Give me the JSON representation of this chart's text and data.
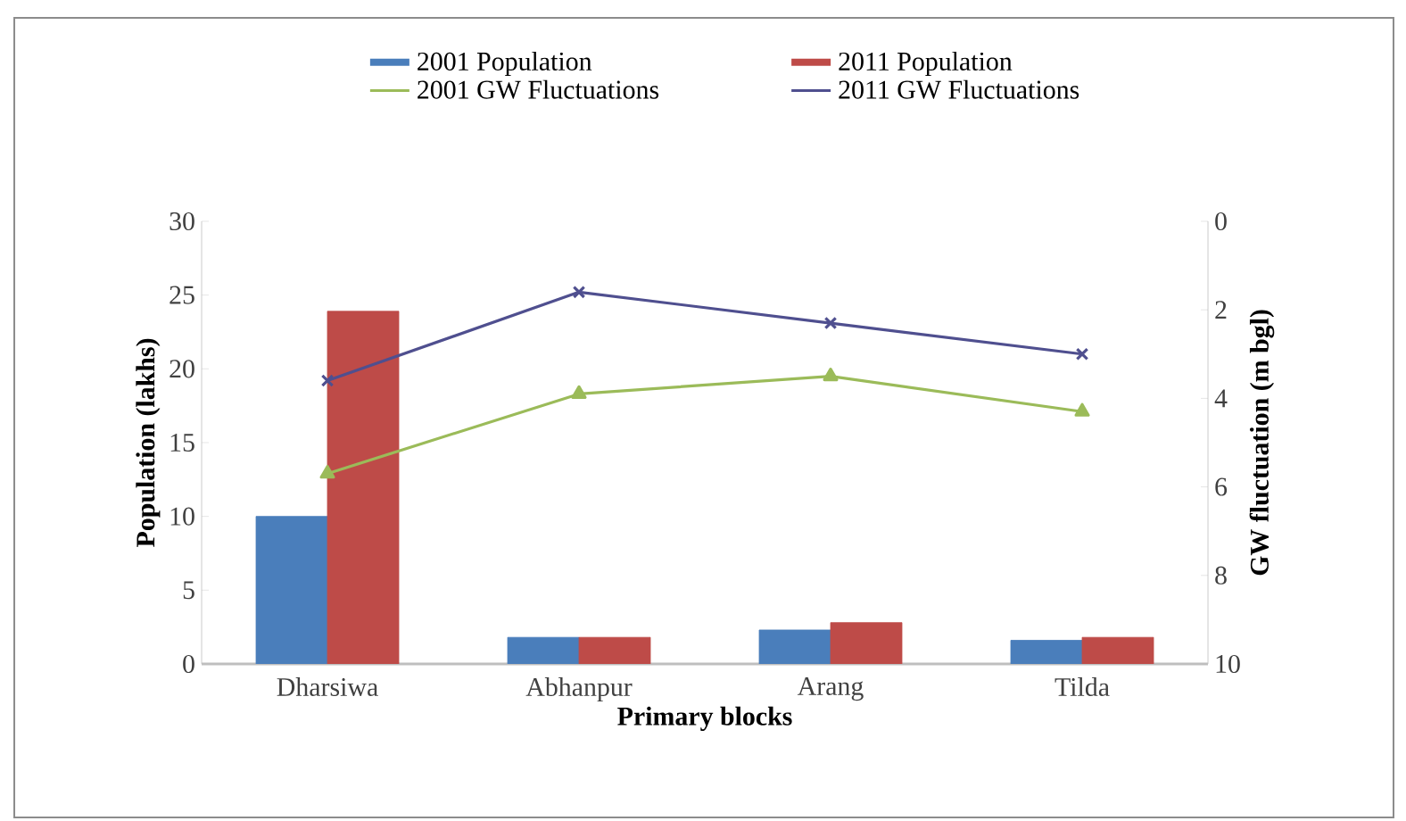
{
  "chart_data": {
    "type": "bar",
    "xlabel": "Primary blocks",
    "ylabel": "Population (lakhs)",
    "y2label": "GW fluctuation (m bgl)",
    "categories": [
      "Dharsiwa",
      "Abhanpur",
      "Arang",
      "Tilda"
    ],
    "series": [
      {
        "name": "2001 Population",
        "color": "#4a7ebb",
        "values": [
          10,
          1.8,
          2.3,
          1.6
        ]
      },
      {
        "name": "2011 Population",
        "color": "#be4b48",
        "values": [
          23.9,
          1.8,
          2.8,
          1.8
        ]
      },
      {
        "name": "2001 GW Fluctuations",
        "type": "line",
        "axis": "y2",
        "color": "#9bbb59",
        "marker": "triangle",
        "values": [
          5.7,
          3.9,
          3.5,
          4.3
        ]
      },
      {
        "name": "2011 GW Fluctuations",
        "type": "line",
        "axis": "y2",
        "color": "#4f4f8f",
        "marker": "cross",
        "values": [
          3.6,
          1.6,
          2.3,
          3.0
        ]
      }
    ],
    "ylim": [
      0,
      30
    ],
    "yticks": [
      0,
      5,
      10,
      15,
      20,
      25,
      30
    ],
    "y2lim": [
      10,
      0
    ],
    "y2ticks": [
      0,
      2,
      4,
      6,
      8,
      10
    ],
    "legend": "top",
    "grid": false
  }
}
